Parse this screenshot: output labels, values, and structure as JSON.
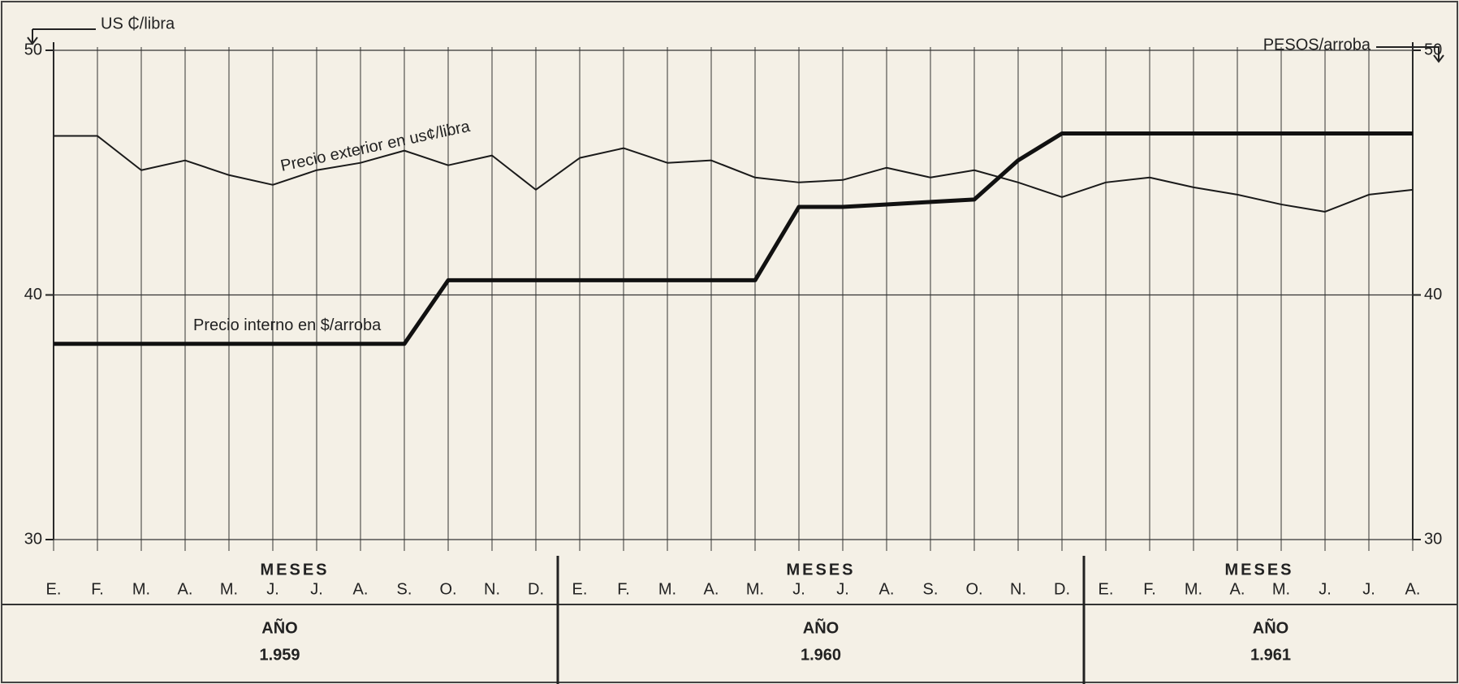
{
  "chart_data": {
    "type": "line",
    "y_axis_label": "US ₵/libra",
    "y2_axis_label": "PESOS/arroba",
    "categories": [
      "E.",
      "F.",
      "M.",
      "A.",
      "M.",
      "J.",
      "J.",
      "A.",
      "S.",
      "O.",
      "N.",
      "D.",
      "E.",
      "F.",
      "M.",
      "A.",
      "M.",
      "J.",
      "J.",
      "A.",
      "S.",
      "O.",
      "N.",
      "D.",
      "E.",
      "F.",
      "M.",
      "A.",
      "M.",
      "J.",
      "J.",
      "A."
    ],
    "months_heading": "MESES",
    "year_heading": "AÑO",
    "years": [
      "1.959",
      "1.960",
      "1.961"
    ],
    "series": [
      {
        "name": "Precio exterior en us¢/libra",
        "color": "#1a1a1a",
        "width": 2,
        "values": [
          46.5,
          46.5,
          45.1,
          45.5,
          44.9,
          44.5,
          45.1,
          45.4,
          45.9,
          45.3,
          45.7,
          44.3,
          45.6,
          46.0,
          45.4,
          45.5,
          44.8,
          44.6,
          44.7,
          45.2,
          44.8,
          45.1,
          44.6,
          44.0,
          44.6,
          44.8,
          44.4,
          44.1,
          43.7,
          43.4,
          44.1,
          44.3
        ]
      },
      {
        "name": "Precio interno en $/arroba",
        "color": "#111111",
        "width": 5,
        "axis": "y2",
        "values": [
          38.0,
          38.0,
          38.0,
          38.0,
          38.0,
          38.0,
          38.0,
          38.0,
          38.0,
          40.6,
          40.6,
          40.6,
          40.6,
          40.6,
          40.6,
          40.6,
          40.6,
          43.6,
          43.6,
          43.7,
          43.8,
          43.9,
          45.5,
          46.6,
          46.6,
          46.6,
          46.6,
          46.6,
          46.6,
          46.6,
          46.6,
          46.6
        ]
      }
    ],
    "ylim": [
      30,
      50
    ],
    "yticks": [
      30,
      40,
      50
    ],
    "y2lim": [
      30,
      50
    ],
    "y2ticks": [
      30,
      40,
      50
    ],
    "grid": true
  }
}
